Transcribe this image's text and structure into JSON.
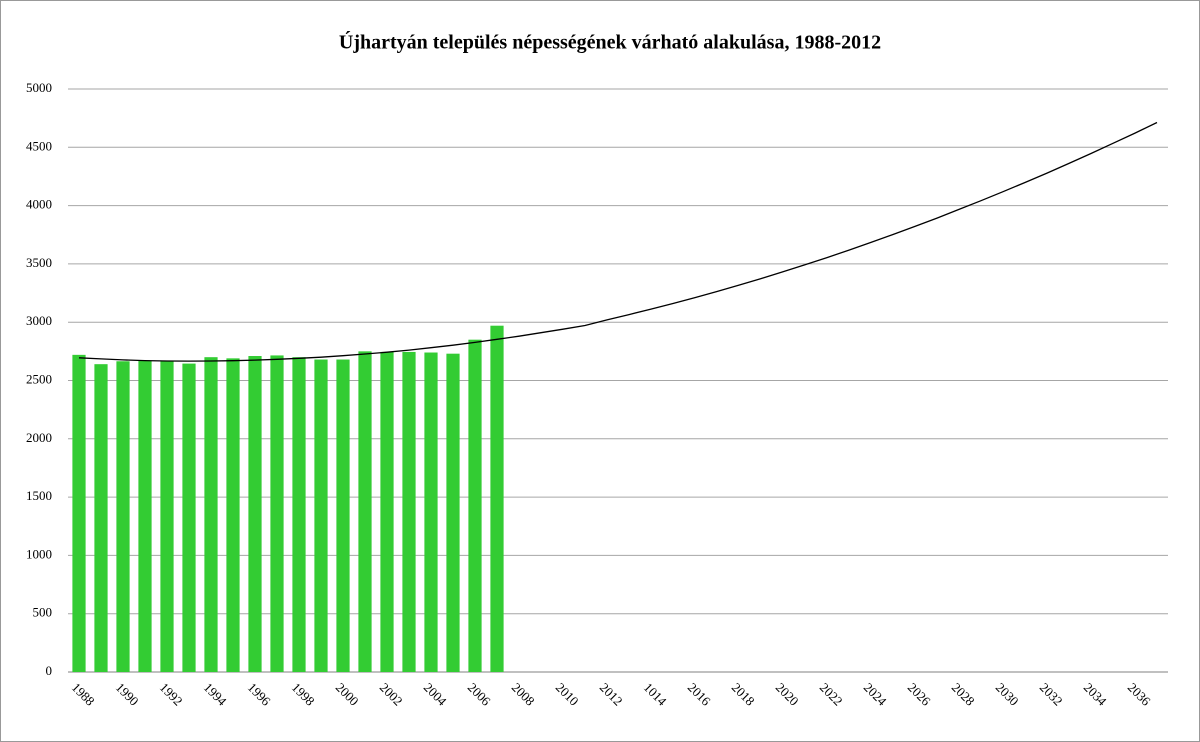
{
  "chart_data": {
    "type": "bar",
    "title": "Újhartyán település népességének várható alakulása, 1988-2012",
    "categories": [
      "1988",
      null,
      "1990",
      null,
      "1992",
      null,
      "1994",
      null,
      "1996",
      null,
      "1998",
      null,
      "2000",
      null,
      "2002",
      null,
      "2004",
      null,
      "2006",
      null,
      "2008",
      null,
      "2010",
      null,
      "2012",
      null,
      "1014",
      null,
      "2016",
      null,
      "2018",
      null,
      "2020",
      null,
      "2022",
      null,
      "2024",
      null,
      "2026",
      null,
      "2028",
      null,
      "2030",
      null,
      "2032",
      null,
      "2034",
      null,
      "2036",
      null
    ],
    "series": [
      {
        "type": "bar",
        "color": "#33cc33",
        "values": [
          2720,
          2640,
          2665,
          2670,
          2670,
          2645,
          2700,
          2690,
          2710,
          2715,
          2700,
          2680,
          2680,
          2750,
          2745,
          2745,
          2740,
          2730,
          2850,
          2970,
          null,
          null,
          null,
          null,
          null,
          null,
          null,
          null,
          null,
          null,
          null,
          null,
          null,
          null,
          null,
          null,
          null,
          null,
          null,
          null,
          null,
          null,
          null,
          null,
          null,
          null,
          null,
          null,
          null,
          null
        ]
      },
      {
        "type": "line",
        "color": "#000000",
        "values": [
          2695,
          2685,
          2677,
          2671,
          2667,
          2666,
          2667,
          2670,
          2675,
          2682,
          2690,
          2700,
          2713,
          2727,
          2743,
          2761,
          2781,
          2803,
          2827,
          2853,
          2880,
          2910,
          2940,
          2972,
          3020,
          3065,
          3112,
          3160,
          3211,
          3263,
          3318,
          3374,
          3432,
          3492,
          3554,
          3618,
          3684,
          3752,
          3822,
          3893,
          3967,
          4042,
          4119,
          4198,
          4279,
          4362,
          4447,
          4534,
          4622,
          4713
        ]
      }
    ],
    "ylim": [
      0,
      5000
    ],
    "yticks": [
      0,
      500,
      1000,
      1500,
      2000,
      2500,
      3000,
      3500,
      4000,
      4500,
      5000
    ],
    "grid": true
  }
}
